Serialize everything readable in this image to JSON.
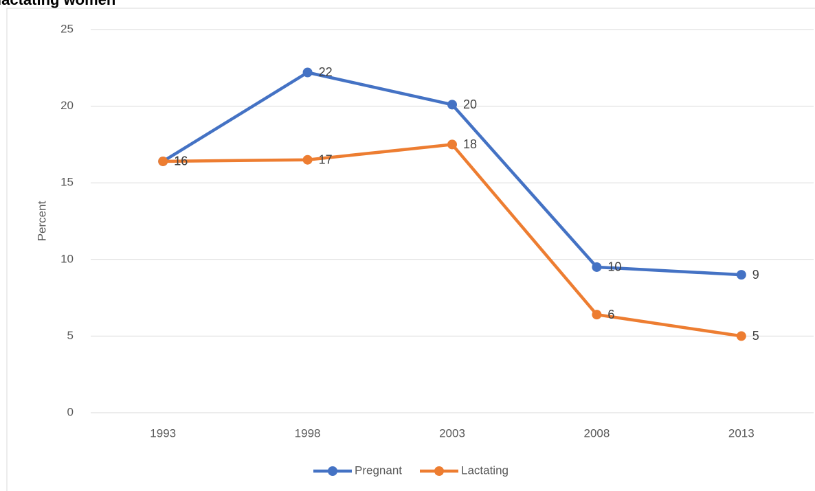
{
  "chart_data": {
    "type": "line",
    "title": "lactating women",
    "y_label": "Percent",
    "categories": [
      "1993",
      "1998",
      "2003",
      "2008",
      "2013"
    ],
    "series": [
      {
        "name": "Pregnant",
        "color": "#4472c4",
        "values": [
          16.4,
          22.2,
          20.1,
          9.5,
          9.0
        ],
        "value_labels": [
          "16",
          "22",
          "20",
          "10",
          "9"
        ]
      },
      {
        "name": "Lactating",
        "color": "#ed7d31",
        "values": [
          16.4,
          16.5,
          17.5,
          6.4,
          5.0
        ],
        "value_labels": [
          "16",
          "17",
          "18",
          "6",
          "5"
        ]
      }
    ],
    "ylim": [
      0,
      25
    ],
    "yticks": [
      0,
      5,
      10,
      15,
      20,
      25
    ],
    "grid": true,
    "legend": "bottom"
  }
}
